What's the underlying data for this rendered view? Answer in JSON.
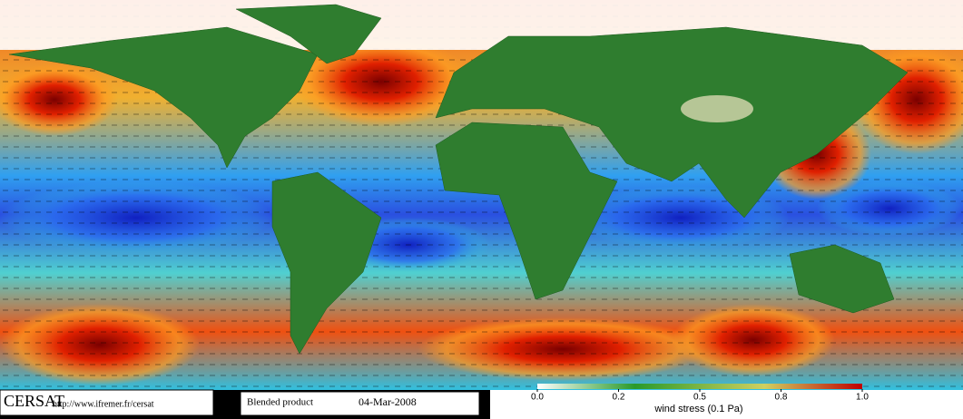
{
  "header": {
    "title": "CERSAT",
    "url": "http://www.ifremer.fr/cersat"
  },
  "product": {
    "name": "Blended product",
    "date": "04-Mar-2008"
  },
  "colorbar": {
    "label": "wind stress (0.1 Pa)",
    "ticks": [
      {
        "value": 0,
        "label": "0.0"
      },
      0.2,
      0.5,
      0.8,
      {
        "value": 1,
        "label": "1.0"
      }
    ]
  }
}
